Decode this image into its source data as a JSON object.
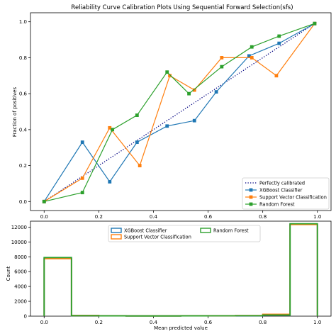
{
  "chart_data": [
    {
      "type": "line",
      "title": "Reliability Curve Calibration Plots Using Sequential Forward Selection(sfs)",
      "xlabel": "",
      "ylabel": "Fraction of positives",
      "xlim": [
        -0.05,
        1.05
      ],
      "ylim": [
        -0.05,
        1.05
      ],
      "xticks": [
        "0.0",
        "0.2",
        "0.4",
        "0.6",
        "0.8",
        "1.0"
      ],
      "yticks": [
        "0.0",
        "0.2",
        "0.4",
        "0.6",
        "0.8",
        "1.0"
      ],
      "grid": false,
      "legend_position": "bottom-right",
      "series": [
        {
          "name": "Perfectly calibrated",
          "color": "#000080",
          "style": "dotted",
          "marker": "none",
          "x": [
            0,
            1
          ],
          "y": [
            0,
            1
          ]
        },
        {
          "name": "XGBoost Classifier",
          "color": "#1f77b4",
          "style": "solid",
          "marker": "square",
          "x": [
            0.0,
            0.14,
            0.24,
            0.34,
            0.45,
            0.55,
            0.63,
            0.75,
            0.86,
            0.99
          ],
          "y": [
            0.0,
            0.33,
            0.11,
            0.33,
            0.42,
            0.45,
            0.61,
            0.81,
            0.88,
            0.99
          ]
        },
        {
          "name": "Support Vector Classification",
          "color": "#ff7f0e",
          "style": "solid",
          "marker": "square",
          "x": [
            0.0,
            0.14,
            0.24,
            0.35,
            0.46,
            0.55,
            0.65,
            0.76,
            0.85,
            0.99
          ],
          "y": [
            0.0,
            0.13,
            0.41,
            0.2,
            0.7,
            0.62,
            0.8,
            0.8,
            0.7,
            0.99
          ]
        },
        {
          "name": "Random Forest",
          "color": "#2ca02c",
          "style": "solid",
          "marker": "square",
          "x": [
            0.0,
            0.14,
            0.25,
            0.34,
            0.45,
            0.53,
            0.65,
            0.76,
            0.86,
            0.99
          ],
          "y": [
            0.0,
            0.05,
            0.4,
            0.48,
            0.72,
            0.6,
            0.75,
            0.86,
            0.92,
            0.99
          ]
        }
      ]
    },
    {
      "type": "bar",
      "title": "",
      "xlabel": "Mean predicted value",
      "ylabel": "Count",
      "xlim": [
        -0.05,
        1.05
      ],
      "ylim": [
        0,
        12800
      ],
      "xticks": [
        "0.0",
        "0.2",
        "0.4",
        "0.6",
        "0.8",
        "1.0"
      ],
      "yticks": [
        "0",
        "2000",
        "4000",
        "6000",
        "8000",
        "10000",
        "12000"
      ],
      "grid": false,
      "legend_position": "top-center",
      "bin_edges": [
        0.0,
        0.1,
        0.2,
        0.3,
        0.4,
        0.5,
        0.6,
        0.7,
        0.8,
        0.9,
        1.0
      ],
      "series": [
        {
          "name": "XGBoost Classifier",
          "color": "#1f77b4",
          "values": [
            7850,
            80,
            40,
            30,
            30,
            40,
            60,
            60,
            150,
            12400
          ]
        },
        {
          "name": "Support Vector Classification",
          "color": "#ff7f0e",
          "values": [
            7750,
            90,
            40,
            30,
            30,
            40,
            60,
            80,
            250,
            12350
          ]
        },
        {
          "name": "Random Forest",
          "color": "#2ca02c",
          "values": [
            7900,
            60,
            40,
            30,
            30,
            40,
            50,
            60,
            150,
            12450
          ]
        }
      ]
    }
  ]
}
